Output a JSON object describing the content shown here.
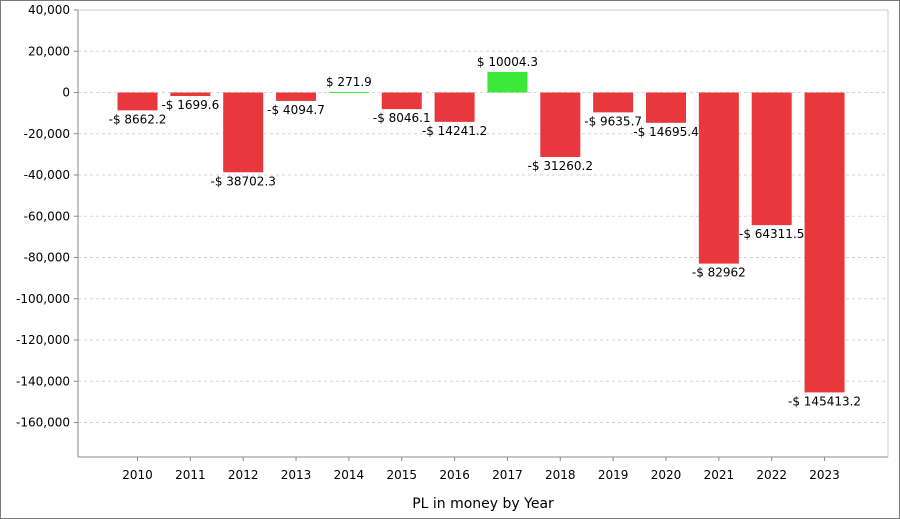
{
  "chart_data": {
    "type": "bar",
    "title": "",
    "xlabel": "PL in money by Year",
    "ylabel": "",
    "ylim": [
      -180000,
      40000
    ],
    "yticks": [
      40000,
      20000,
      0,
      -20000,
      -40000,
      -60000,
      -80000,
      -100000,
      -120000,
      -140000,
      -160000
    ],
    "ytick_labels": [
      "40,000",
      "20,000",
      "0",
      "-20,000",
      "-40,000",
      "-60,000",
      "-80,000",
      "-100,000",
      "-120,000",
      "-140,000",
      "-160,000"
    ],
    "grid": true,
    "categories": [
      "2010",
      "2011",
      "2012",
      "2013",
      "2014",
      "2015",
      "2016",
      "2017",
      "2018",
      "2019",
      "2020",
      "2021",
      "2022",
      "2023"
    ],
    "values": [
      -8662.2,
      -1699.6,
      -38702.3,
      -4094.7,
      271.9,
      -8046.1,
      -14241.2,
      10004.3,
      -31260.2,
      -9635.7,
      -14695.4,
      -82962,
      -64311.5,
      -145413.2
    ],
    "data_labels": [
      "-$ 8662.2",
      "-$ 1699.6",
      "-$ 38702.3",
      "-$ 4094.7",
      "$ 271.9",
      "-$ 8046.1",
      "-$ 14241.2",
      "$ 10004.3",
      "-$ 31260.2",
      "-$ 9635.7",
      "-$ 14695.4",
      "-$ 82962",
      "-$ 64311.5",
      "-$ 145413.2"
    ],
    "colors": {
      "negative": "#e8383d",
      "positive": "#3ee83a"
    }
  }
}
